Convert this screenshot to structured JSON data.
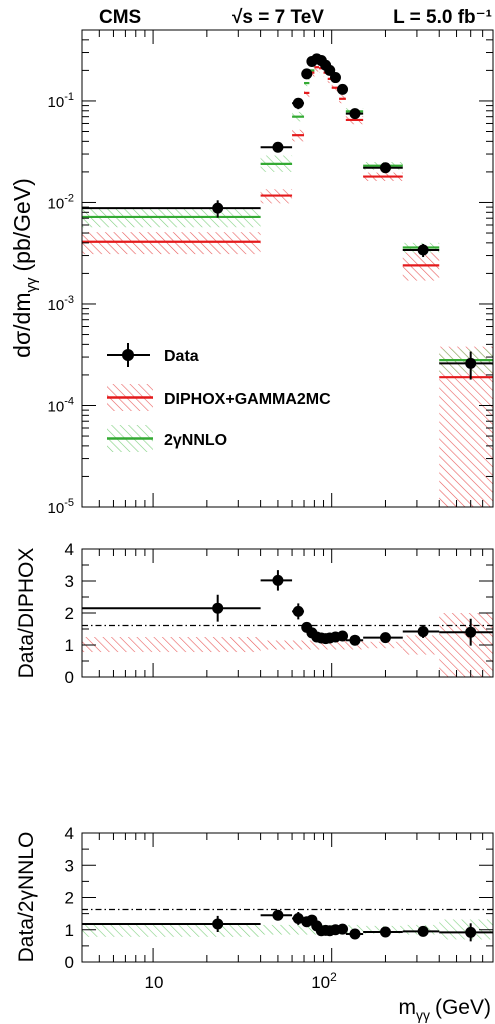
{
  "header": {
    "experiment": "CMS",
    "energy": "√s = 7 TeV",
    "lumi": "L = 5.0 fb⁻¹"
  },
  "colors": {
    "data": "#000000",
    "diphox": "#e41a1c",
    "nnlo": "#33aa33",
    "diphox_hatch": "#e85a5a",
    "nnlo_hatch": "#7fd07f"
  },
  "chart_data": [
    {
      "type": "scatter",
      "panel": "main",
      "ylabel": "dσ/dm_γγ (pb/GeV)",
      "ylabel_base": "dσ/dm",
      "ylabel_sub": "γγ",
      "ylabel_unit": "(pb/GeV)",
      "x_log": true,
      "xlim": [
        4.0,
        800
      ],
      "y_log": true,
      "ylim": [
        1e-05,
        0.5
      ],
      "y_ticks": [
        "10⁻⁵",
        "10⁻⁴",
        "10⁻³",
        "10⁻²",
        "10⁻¹"
      ],
      "y_tick_base": "10",
      "y_tick_exps": [
        "-5",
        "-4",
        "-3",
        "-2",
        "-1"
      ],
      "legend": {
        "placement": "lower-left",
        "entries": [
          "Data",
          "DIPHOX+GAMMA2MC",
          "2γNNLO"
        ]
      },
      "data_points": [
        {
          "x": 23.0,
          "y": 0.0088,
          "xlow": 4.0,
          "xhigh": 40.0,
          "yerr": 0.0017
        },
        {
          "x": 50.0,
          "y": 0.035,
          "xlow": 40.0,
          "xhigh": 60.0,
          "yerr": 0.003
        },
        {
          "x": 65.0,
          "y": 0.095,
          "xlow": 60.0,
          "xhigh": 70.0,
          "yerr": 0.012
        },
        {
          "x": 72.5,
          "y": 0.185,
          "xlow": 70.0,
          "xhigh": 75.0,
          "yerr": 0.02
        },
        {
          "x": 77.5,
          "y": 0.245,
          "xlow": 75.0,
          "xhigh": 80.0,
          "yerr": 0.02
        },
        {
          "x": 82.5,
          "y": 0.26,
          "xlow": 80.0,
          "xhigh": 85.0,
          "yerr": 0.02
        },
        {
          "x": 87.5,
          "y": 0.25,
          "xlow": 85.0,
          "xhigh": 90.0,
          "yerr": 0.02
        },
        {
          "x": 92.5,
          "y": 0.225,
          "xlow": 90.0,
          "xhigh": 95.0,
          "yerr": 0.018
        },
        {
          "x": 97.5,
          "y": 0.2,
          "xlow": 95.0,
          "xhigh": 100.0,
          "yerr": 0.016
        },
        {
          "x": 105.0,
          "y": 0.17,
          "xlow": 100.0,
          "xhigh": 110.0,
          "yerr": 0.014
        },
        {
          "x": 115.0,
          "y": 0.13,
          "xlow": 110.0,
          "xhigh": 120.0,
          "yerr": 0.01
        },
        {
          "x": 135.0,
          "y": 0.075,
          "xlow": 120.0,
          "xhigh": 150.0,
          "yerr": 0.006
        },
        {
          "x": 200.0,
          "y": 0.022,
          "xlow": 150.0,
          "xhigh": 250.0,
          "yerr": 0.002
        },
        {
          "x": 325.0,
          "y": 0.0034,
          "xlow": 250.0,
          "xhigh": 400.0,
          "yerr": 0.0005
        },
        {
          "x": 600.0,
          "y": 0.00026,
          "xlow": 400.0,
          "xhigh": 800.0,
          "yerr": 8e-05
        }
      ],
      "diphox_bins": [
        {
          "xlow": 4.0,
          "xhigh": 40.0,
          "y": 0.0041,
          "ylow": 0.0031,
          "yhigh": 0.0051
        },
        {
          "xlow": 40.0,
          "xhigh": 60.0,
          "y": 0.0117,
          "ylow": 0.0098,
          "yhigh": 0.0135
        },
        {
          "xlow": 60.0,
          "xhigh": 70.0,
          "y": 0.046,
          "ylow": 0.04,
          "yhigh": 0.052
        },
        {
          "xlow": 70.0,
          "xhigh": 75.0,
          "y": 0.12,
          "ylow": 0.108,
          "yhigh": 0.132
        },
        {
          "xlow": 75.0,
          "xhigh": 80.0,
          "y": 0.19,
          "ylow": 0.172,
          "yhigh": 0.208
        },
        {
          "xlow": 80.0,
          "xhigh": 85.0,
          "y": 0.215,
          "ylow": 0.195,
          "yhigh": 0.235
        },
        {
          "xlow": 85.0,
          "xhigh": 90.0,
          "y": 0.21,
          "ylow": 0.19,
          "yhigh": 0.23
        },
        {
          "xlow": 90.0,
          "xhigh": 95.0,
          "y": 0.19,
          "ylow": 0.172,
          "yhigh": 0.208
        },
        {
          "xlow": 95.0,
          "xhigh": 100.0,
          "y": 0.165,
          "ylow": 0.15,
          "yhigh": 0.18
        },
        {
          "xlow": 100.0,
          "xhigh": 110.0,
          "y": 0.135,
          "ylow": 0.123,
          "yhigh": 0.147
        },
        {
          "xlow": 110.0,
          "xhigh": 120.0,
          "y": 0.105,
          "ylow": 0.095,
          "yhigh": 0.115
        },
        {
          "xlow": 120.0,
          "xhigh": 150.0,
          "y": 0.065,
          "ylow": 0.059,
          "yhigh": 0.071
        },
        {
          "xlow": 150.0,
          "xhigh": 250.0,
          "y": 0.018,
          "ylow": 0.0163,
          "yhigh": 0.0197
        },
        {
          "xlow": 250.0,
          "xhigh": 400.0,
          "y": 0.0024,
          "ylow": 0.0017,
          "yhigh": 0.0032
        },
        {
          "xlow": 400.0,
          "xhigh": 800.0,
          "y": 0.00019,
          "ylow": 1e-05,
          "yhigh": 0.00038
        }
      ],
      "nnlo_bins": [
        {
          "xlow": 4.0,
          "xhigh": 40.0,
          "y": 0.0072,
          "ylow": 0.0057,
          "yhigh": 0.0089
        },
        {
          "xlow": 40.0,
          "xhigh": 60.0,
          "y": 0.024,
          "ylow": 0.02,
          "yhigh": 0.029
        },
        {
          "xlow": 60.0,
          "xhigh": 70.0,
          "y": 0.07,
          "ylow": 0.063,
          "yhigh": 0.078
        },
        {
          "xlow": 70.0,
          "xhigh": 75.0,
          "y": 0.15,
          "ylow": 0.14,
          "yhigh": 0.165
        },
        {
          "xlow": 75.0,
          "xhigh": 80.0,
          "y": 0.2,
          "ylow": 0.185,
          "yhigh": 0.215
        },
        {
          "xlow": 80.0,
          "xhigh": 85.0,
          "y": 0.25,
          "ylow": 0.232,
          "yhigh": 0.268
        },
        {
          "xlow": 85.0,
          "xhigh": 90.0,
          "y": 0.245,
          "ylow": 0.228,
          "yhigh": 0.262
        },
        {
          "xlow": 90.0,
          "xhigh": 95.0,
          "y": 0.22,
          "ylow": 0.205,
          "yhigh": 0.235
        },
        {
          "xlow": 95.0,
          "xhigh": 100.0,
          "y": 0.195,
          "ylow": 0.181,
          "yhigh": 0.209
        },
        {
          "xlow": 100.0,
          "xhigh": 110.0,
          "y": 0.165,
          "ylow": 0.153,
          "yhigh": 0.177
        },
        {
          "xlow": 110.0,
          "xhigh": 120.0,
          "y": 0.128,
          "ylow": 0.119,
          "yhigh": 0.137
        },
        {
          "xlow": 120.0,
          "xhigh": 150.0,
          "y": 0.079,
          "ylow": 0.073,
          "yhigh": 0.085
        },
        {
          "xlow": 150.0,
          "xhigh": 250.0,
          "y": 0.023,
          "ylow": 0.021,
          "yhigh": 0.025
        },
        {
          "xlow": 250.0,
          "xhigh": 400.0,
          "y": 0.0036,
          "ylow": 0.0032,
          "yhigh": 0.004
        },
        {
          "xlow": 400.0,
          "xhigh": 800.0,
          "y": 0.00028,
          "ylow": 0.00021,
          "yhigh": 0.00036
        }
      ]
    },
    {
      "type": "scatter",
      "panel": "ratio_diphox",
      "ylabel": "Data/DIPHOX",
      "x_log": true,
      "xlim": [
        4.0,
        800
      ],
      "ylim": [
        0,
        4
      ],
      "y_ticks": [
        "0",
        "1",
        "2",
        "3",
        "4"
      ],
      "reference_line": 1,
      "ratio_points": [
        {
          "x": 23.0,
          "y": 2.15,
          "xlow": 4.0,
          "xhigh": 40.0,
          "yerr": 0.42
        },
        {
          "x": 50.0,
          "y": 3.02,
          "xlow": 40.0,
          "xhigh": 60.0,
          "yerr": 0.32
        },
        {
          "x": 65.0,
          "y": 2.05,
          "xlow": 60.0,
          "xhigh": 70.0,
          "yerr": 0.25
        },
        {
          "x": 72.5,
          "y": 1.55,
          "xlow": 70.0,
          "xhigh": 75.0,
          "yerr": 0.15
        },
        {
          "x": 77.5,
          "y": 1.38,
          "xlow": 75.0,
          "xhigh": 80.0,
          "yerr": 0.12
        },
        {
          "x": 82.5,
          "y": 1.25,
          "xlow": 80.0,
          "xhigh": 85.0,
          "yerr": 0.1
        },
        {
          "x": 87.5,
          "y": 1.22,
          "xlow": 85.0,
          "xhigh": 90.0,
          "yerr": 0.1
        },
        {
          "x": 92.5,
          "y": 1.2,
          "xlow": 90.0,
          "xhigh": 95.0,
          "yerr": 0.1
        },
        {
          "x": 97.5,
          "y": 1.22,
          "xlow": 95.0,
          "xhigh": 100.0,
          "yerr": 0.1
        },
        {
          "x": 105.0,
          "y": 1.25,
          "xlow": 100.0,
          "xhigh": 110.0,
          "yerr": 0.1
        },
        {
          "x": 115.0,
          "y": 1.28,
          "xlow": 110.0,
          "xhigh": 120.0,
          "yerr": 0.1
        },
        {
          "x": 135.0,
          "y": 1.15,
          "xlow": 120.0,
          "xhigh": 150.0,
          "yerr": 0.1
        },
        {
          "x": 200.0,
          "y": 1.23,
          "xlow": 150.0,
          "xhigh": 250.0,
          "yerr": 0.1
        },
        {
          "x": 325.0,
          "y": 1.42,
          "xlow": 250.0,
          "xhigh": 400.0,
          "yerr": 0.2
        },
        {
          "x": 600.0,
          "y": 1.4,
          "xlow": 400.0,
          "xhigh": 800.0,
          "yerr": 0.42
        }
      ],
      "band_bins": [
        {
          "xlow": 4.0,
          "xhigh": 40.0,
          "ylow": 0.78,
          "yhigh": 1.25
        },
        {
          "xlow": 40.0,
          "xhigh": 150.0,
          "ylow": 0.86,
          "yhigh": 1.14
        },
        {
          "xlow": 150.0,
          "xhigh": 250.0,
          "ylow": 0.9,
          "yhigh": 1.1
        },
        {
          "xlow": 250.0,
          "xhigh": 400.0,
          "ylow": 0.7,
          "yhigh": 1.3
        },
        {
          "xlow": 400.0,
          "xhigh": 800.0,
          "ylow": 0.0,
          "yhigh": 2.0
        }
      ]
    },
    {
      "type": "scatter",
      "panel": "ratio_nnlo",
      "ylabel": "Data/2γNNLO",
      "xlabel": "m_γγ (GeV)",
      "xlabel_base": "m",
      "xlabel_sub": "γγ",
      "xlabel_unit": "(GeV)",
      "x_log": true,
      "xlim": [
        4.0,
        800
      ],
      "ylim": [
        0,
        4
      ],
      "y_ticks": [
        "0",
        "1",
        "2",
        "3",
        "4"
      ],
      "x_ticks": [
        "10",
        "10²"
      ],
      "x_tick_10": "10",
      "x_tick_100_base": "10",
      "x_tick_100_exp": "2",
      "reference_line": 1,
      "ratio_points": [
        {
          "x": 23.0,
          "y": 1.18,
          "xlow": 4.0,
          "xhigh": 40.0,
          "yerr": 0.25
        },
        {
          "x": 50.0,
          "y": 1.45,
          "xlow": 40.0,
          "xhigh": 60.0,
          "yerr": 0.15
        },
        {
          "x": 65.0,
          "y": 1.35,
          "xlow": 60.0,
          "xhigh": 70.0,
          "yerr": 0.2
        },
        {
          "x": 72.5,
          "y": 1.25,
          "xlow": 70.0,
          "xhigh": 75.0,
          "yerr": 0.15
        },
        {
          "x": 77.5,
          "y": 1.3,
          "xlow": 75.0,
          "xhigh": 80.0,
          "yerr": 0.13
        },
        {
          "x": 82.5,
          "y": 1.12,
          "xlow": 80.0,
          "xhigh": 85.0,
          "yerr": 0.1
        },
        {
          "x": 87.5,
          "y": 0.97,
          "xlow": 85.0,
          "xhigh": 90.0,
          "yerr": 0.08
        },
        {
          "x": 92.5,
          "y": 0.98,
          "xlow": 90.0,
          "xhigh": 95.0,
          "yerr": 0.08
        },
        {
          "x": 97.5,
          "y": 0.97,
          "xlow": 95.0,
          "xhigh": 100.0,
          "yerr": 0.08
        },
        {
          "x": 105.0,
          "y": 1.0,
          "xlow": 100.0,
          "xhigh": 110.0,
          "yerr": 0.08
        },
        {
          "x": 115.0,
          "y": 1.02,
          "xlow": 110.0,
          "xhigh": 120.0,
          "yerr": 0.08
        },
        {
          "x": 135.0,
          "y": 0.87,
          "xlow": 120.0,
          "xhigh": 150.0,
          "yerr": 0.08
        },
        {
          "x": 200.0,
          "y": 0.93,
          "xlow": 150.0,
          "xhigh": 250.0,
          "yerr": 0.08
        },
        {
          "x": 325.0,
          "y": 0.95,
          "xlow": 250.0,
          "xhigh": 400.0,
          "yerr": 0.12
        },
        {
          "x": 600.0,
          "y": 0.92,
          "xlow": 400.0,
          "xhigh": 800.0,
          "yerr": 0.28
        }
      ],
      "band_bins": [
        {
          "xlow": 4.0,
          "xhigh": 40.0,
          "ylow": 0.78,
          "yhigh": 1.2
        },
        {
          "xlow": 40.0,
          "xhigh": 150.0,
          "ylow": 0.85,
          "yhigh": 1.15
        },
        {
          "xlow": 150.0,
          "xhigh": 250.0,
          "ylow": 0.88,
          "yhigh": 1.12
        },
        {
          "xlow": 250.0,
          "xhigh": 400.0,
          "ylow": 0.85,
          "yhigh": 1.15
        },
        {
          "xlow": 400.0,
          "xhigh": 800.0,
          "ylow": 0.7,
          "yhigh": 1.32
        }
      ]
    }
  ]
}
